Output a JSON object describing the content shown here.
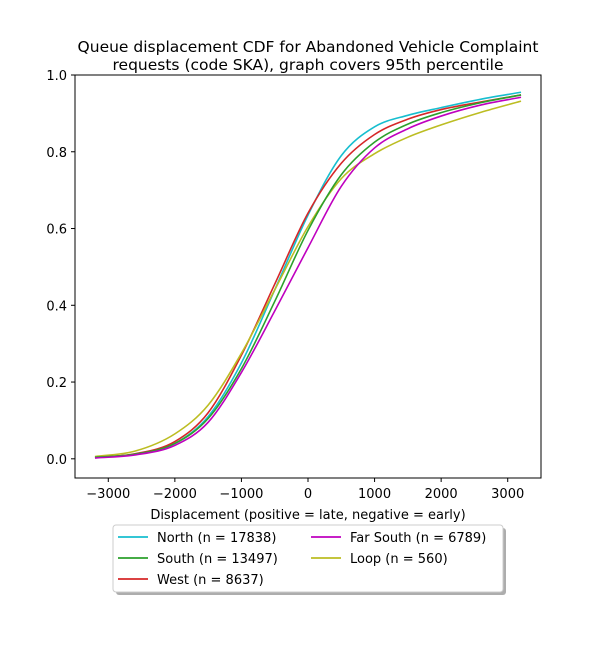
{
  "chart_data": {
    "type": "line",
    "title_lines": [
      "Queue displacement CDF for Abandoned Vehicle Complaint",
      "requests (code SKA), graph covers 95th percentile"
    ],
    "xlabel": "Displacement (positive = late, negative = early)",
    "ylabel": "",
    "xlim": [
      -3500,
      3500
    ],
    "ylim": [
      -0.05,
      1.0
    ],
    "x_ticks": [
      -3000,
      -2000,
      -1000,
      0,
      1000,
      2000,
      3000
    ],
    "x_tick_labels": [
      "−3000",
      "−2000",
      "−1000",
      "0",
      "1000",
      "2000",
      "3000"
    ],
    "y_ticks": [
      0.0,
      0.2,
      0.4,
      0.6,
      0.8,
      1.0
    ],
    "y_tick_labels": [
      "0.0",
      "0.2",
      "0.4",
      "0.6",
      "0.8",
      "1.0"
    ],
    "grid": false,
    "legend_position": "below",
    "series": [
      {
        "name": "North (n = 17838)",
        "color": "#17becf",
        "x": [
          -3200,
          -2600,
          -2000,
          -1500,
          -1000,
          -500,
          0,
          500,
          1000,
          1500,
          2000,
          2600,
          3200
        ],
        "y": [
          0.004,
          0.012,
          0.04,
          0.11,
          0.25,
          0.44,
          0.635,
          0.79,
          0.865,
          0.895,
          0.915,
          0.937,
          0.955
        ]
      },
      {
        "name": "West (n = 8637)",
        "color": "#d62728",
        "x": [
          -3200,
          -2600,
          -2000,
          -1500,
          -1000,
          -500,
          0,
          500,
          1000,
          1500,
          2000,
          2600,
          3200
        ],
        "y": [
          0.004,
          0.013,
          0.045,
          0.12,
          0.27,
          0.455,
          0.64,
          0.77,
          0.845,
          0.885,
          0.91,
          0.93,
          0.948
        ]
      },
      {
        "name": "Loop (n = 560)",
        "color": "#bcbd22",
        "x": [
          -3200,
          -2600,
          -2000,
          -1500,
          -1000,
          -500,
          0,
          500,
          1000,
          1500,
          2000,
          2600,
          3200
        ],
        "y": [
          0.006,
          0.02,
          0.065,
          0.14,
          0.275,
          0.44,
          0.605,
          0.73,
          0.795,
          0.838,
          0.87,
          0.903,
          0.932
        ]
      },
      {
        "name": "South (n = 13497)",
        "color": "#2ca02c",
        "x": [
          -3200,
          -2600,
          -2000,
          -1500,
          -1000,
          -500,
          0,
          500,
          1000,
          1500,
          2000,
          2600,
          3200
        ],
        "y": [
          0.004,
          0.012,
          0.04,
          0.105,
          0.235,
          0.41,
          0.595,
          0.74,
          0.825,
          0.872,
          0.902,
          0.928,
          0.948
        ]
      },
      {
        "name": "Far South (n = 6789)",
        "color": "#bf00bf",
        "x": [
          -3200,
          -2600,
          -2000,
          -1500,
          -1000,
          -500,
          0,
          500,
          1000,
          1500,
          2000,
          2600,
          3200
        ],
        "y": [
          0.002,
          0.01,
          0.035,
          0.095,
          0.225,
          0.385,
          0.55,
          0.71,
          0.81,
          0.86,
          0.893,
          0.922,
          0.942
        ]
      }
    ],
    "legend_order": [
      0,
      3,
      1,
      4,
      2
    ]
  }
}
